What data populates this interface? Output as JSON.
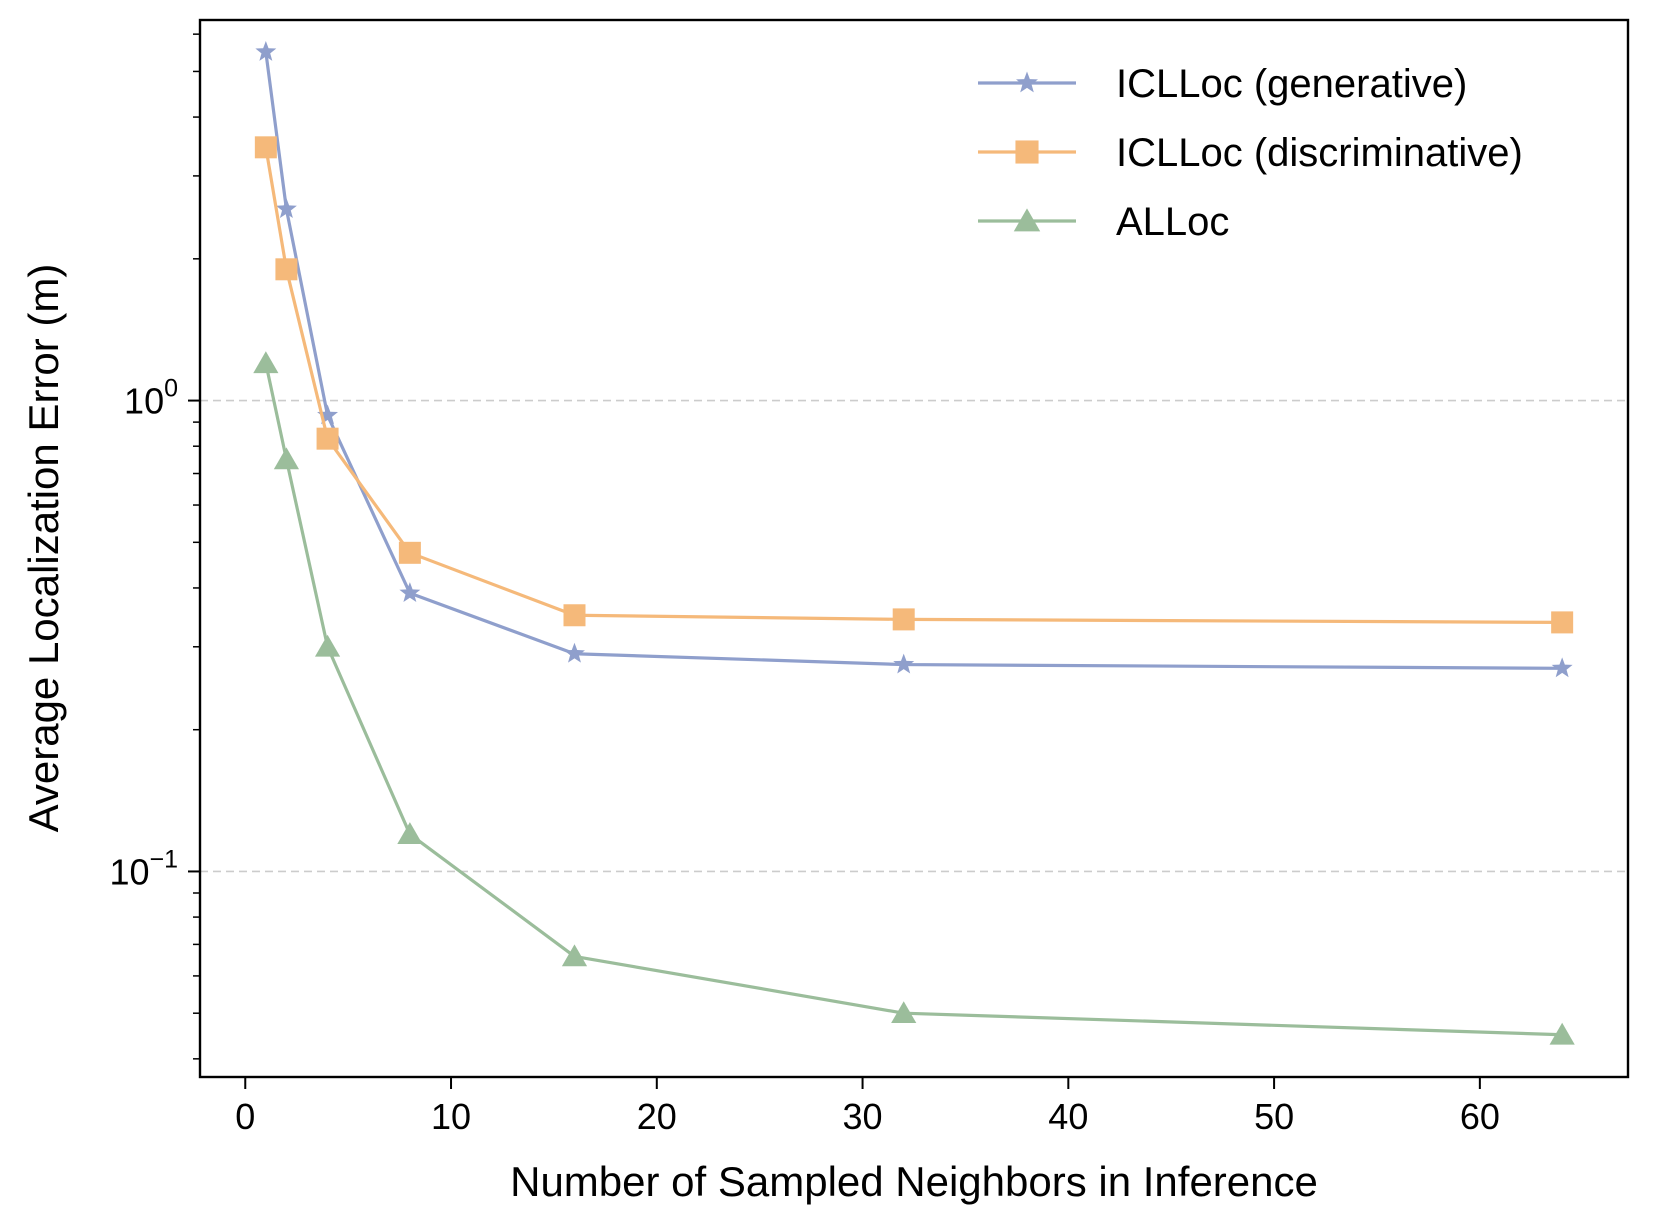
{
  "chart_data": {
    "type": "line",
    "title": "",
    "xlabel": "Number of Sampled Neighbors in Inference",
    "ylabel": "Average Localization Error (m)",
    "yscale": "log",
    "xlim": [
      -2.2,
      67.2
    ],
    "ylim": [
      0.0366,
      6.43
    ],
    "xticks": [
      0,
      10,
      20,
      30,
      40,
      50,
      60
    ],
    "yticks": [
      {
        "value": 1.0,
        "base": "10",
        "exp": "0"
      },
      {
        "value": 0.1,
        "base": "10",
        "exp": "−1"
      }
    ],
    "grid": "horizontal dashed at major y ticks",
    "legend_position": "top-right",
    "x": [
      1,
      2,
      4,
      8,
      16,
      32,
      64
    ],
    "series": [
      {
        "name": "ICLLoc (generative)",
        "color": "#8f9fcc",
        "marker": "star",
        "values": [
          5.5,
          2.55,
          0.93,
          0.39,
          0.29,
          0.275,
          0.27
        ]
      },
      {
        "name": "ICLLoc (discriminative)",
        "color": "#f5b97a",
        "marker": "square",
        "values": [
          3.45,
          1.9,
          0.83,
          0.475,
          0.35,
          0.343,
          0.338
        ]
      },
      {
        "name": "ALLoc",
        "color": "#9bbd9b",
        "marker": "triangle",
        "values": [
          1.2,
          0.75,
          0.3,
          0.12,
          0.066,
          0.05,
          0.045
        ]
      }
    ]
  }
}
